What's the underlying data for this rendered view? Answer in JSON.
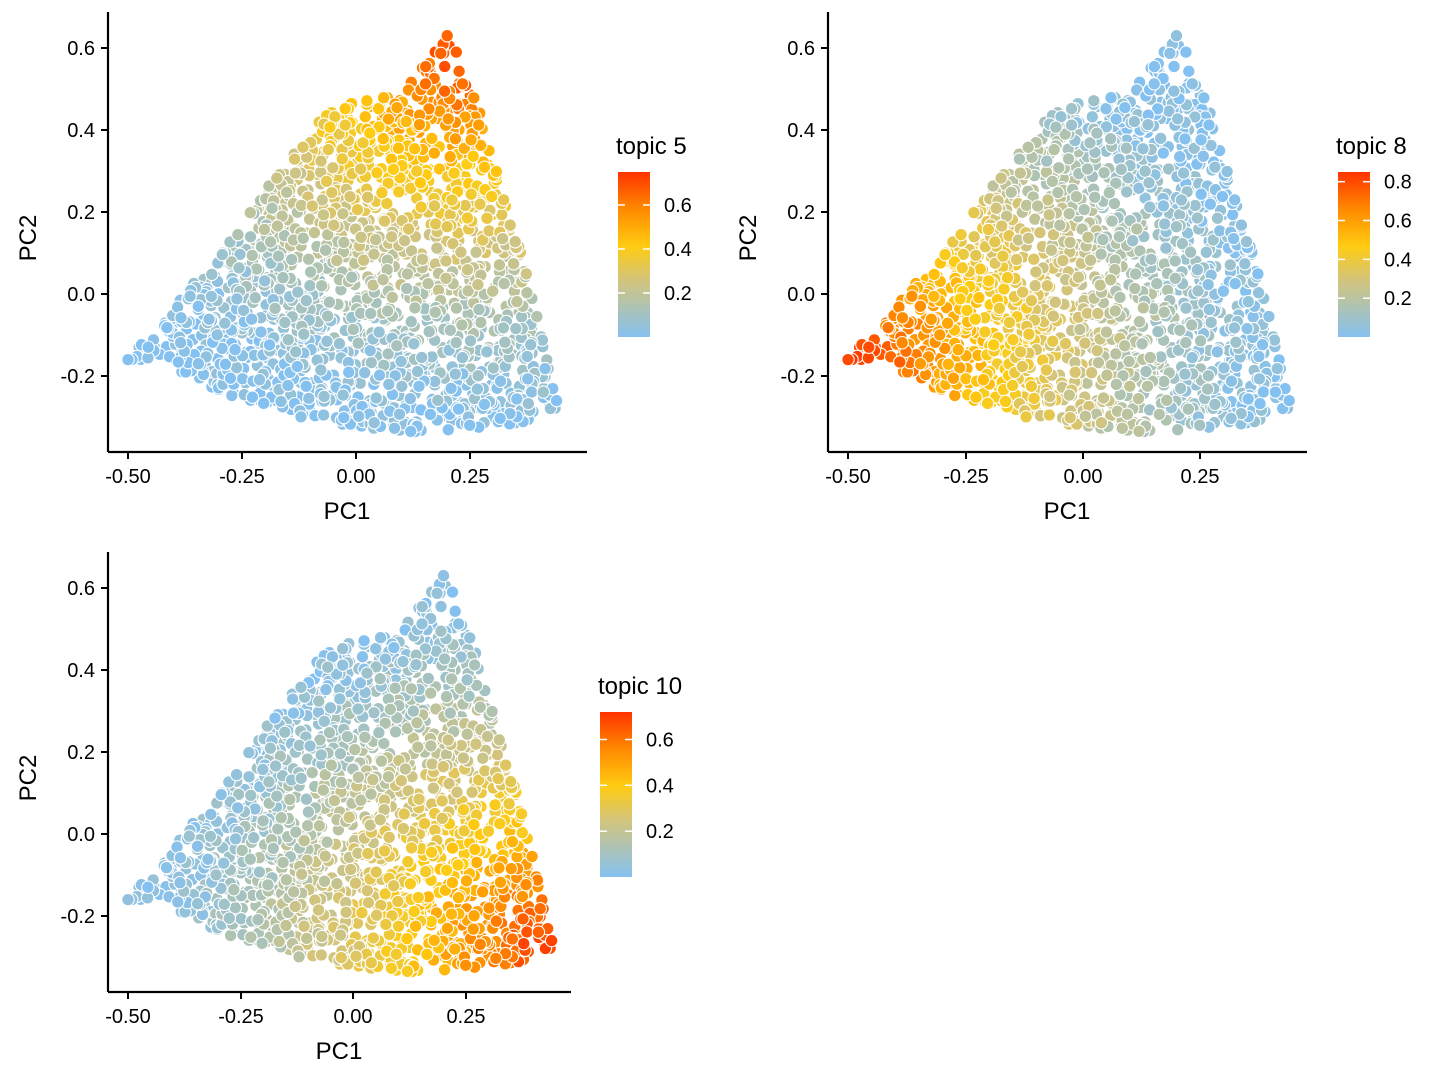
{
  "chart_data": [
    {
      "type": "scatter",
      "title": "",
      "xlabel": "PC1",
      "ylabel": "PC2",
      "xlim": [
        -0.53,
        0.47
      ],
      "ylim": [
        -0.38,
        0.68
      ],
      "x_ticks": [
        -0.5,
        -0.25,
        0.0,
        0.25
      ],
      "x_tick_labels": [
        "-0.50",
        "-0.25",
        "0.00",
        "0.25"
      ],
      "y_ticks": [
        -0.2,
        0.0,
        0.2,
        0.4,
        0.6
      ],
      "y_tick_labels": [
        "-0.2",
        "0.0",
        "0.2",
        "0.4",
        "0.6"
      ],
      "grid": false,
      "color_variable": "topic 5",
      "legend": {
        "title": "topic 5",
        "range": [
          0.0,
          0.75
        ],
        "ticks": [
          0.2,
          0.4,
          0.6
        ],
        "tick_labels": [
          "0.2",
          "0.4",
          "0.6"
        ]
      },
      "direction": [
        0.25,
        0.6
      ],
      "region": [
        [
          -0.5,
          -0.16
        ],
        [
          -0.42,
          -0.06
        ],
        [
          -0.3,
          0.1
        ],
        [
          -0.15,
          0.33
        ],
        [
          -0.05,
          0.46
        ],
        [
          0.1,
          0.49
        ],
        [
          0.2,
          0.63
        ],
        [
          0.27,
          0.45
        ],
        [
          0.33,
          0.22
        ],
        [
          0.4,
          -0.05
        ],
        [
          0.44,
          -0.28
        ],
        [
          0.35,
          -0.32
        ],
        [
          0.12,
          -0.34
        ],
        [
          -0.1,
          -0.31
        ],
        [
          -0.3,
          -0.24
        ],
        [
          -0.44,
          -0.16
        ]
      ]
    },
    {
      "type": "scatter",
      "title": "",
      "xlabel": "PC1",
      "ylabel": "PC2",
      "xlim": [
        -0.53,
        0.47
      ],
      "ylim": [
        -0.38,
        0.68
      ],
      "x_ticks": [
        -0.5,
        -0.25,
        0.0,
        0.25
      ],
      "x_tick_labels": [
        "-0.50",
        "-0.25",
        "0.00",
        "0.25"
      ],
      "y_ticks": [
        -0.2,
        0.0,
        0.2,
        0.4,
        0.6
      ],
      "y_tick_labels": [
        "-0.2",
        "0.0",
        "0.2",
        "0.4",
        "0.6"
      ],
      "grid": false,
      "color_variable": "topic 8",
      "legend": {
        "title": "topic 8",
        "range": [
          0.0,
          0.85
        ],
        "ticks": [
          0.2,
          0.4,
          0.6,
          0.8
        ],
        "tick_labels": [
          "0.2",
          "0.4",
          "0.6",
          "0.8"
        ]
      },
      "direction": [
        -0.5,
        -0.16
      ],
      "region": [
        [
          -0.5,
          -0.16
        ],
        [
          -0.42,
          -0.06
        ],
        [
          -0.3,
          0.1
        ],
        [
          -0.15,
          0.33
        ],
        [
          -0.05,
          0.46
        ],
        [
          0.1,
          0.49
        ],
        [
          0.2,
          0.63
        ],
        [
          0.27,
          0.45
        ],
        [
          0.33,
          0.22
        ],
        [
          0.4,
          -0.05
        ],
        [
          0.44,
          -0.28
        ],
        [
          0.35,
          -0.32
        ],
        [
          0.12,
          -0.34
        ],
        [
          -0.1,
          -0.31
        ],
        [
          -0.3,
          -0.24
        ],
        [
          -0.44,
          -0.16
        ]
      ]
    },
    {
      "type": "scatter",
      "title": "",
      "xlabel": "PC1",
      "ylabel": "PC2",
      "xlim": [
        -0.53,
        0.47
      ],
      "ylim": [
        -0.38,
        0.68
      ],
      "x_ticks": [
        -0.5,
        -0.25,
        0.0,
        0.25
      ],
      "x_tick_labels": [
        "-0.50",
        "-0.25",
        "0.00",
        "0.25"
      ],
      "y_ticks": [
        -0.2,
        0.0,
        0.2,
        0.4,
        0.6
      ],
      "y_tick_labels": [
        "-0.2",
        "0.0",
        "0.2",
        "0.4",
        "0.6"
      ],
      "grid": false,
      "color_variable": "topic 10",
      "legend": {
        "title": "topic 10",
        "range": [
          0.0,
          0.72
        ],
        "ticks": [
          0.2,
          0.4,
          0.6
        ],
        "tick_labels": [
          "0.2",
          "0.4",
          "0.6"
        ]
      },
      "direction": [
        0.44,
        -0.28
      ],
      "region": [
        [
          -0.5,
          -0.16
        ],
        [
          -0.42,
          -0.06
        ],
        [
          -0.3,
          0.1
        ],
        [
          -0.15,
          0.33
        ],
        [
          -0.05,
          0.46
        ],
        [
          0.1,
          0.49
        ],
        [
          0.2,
          0.63
        ],
        [
          0.27,
          0.45
        ],
        [
          0.33,
          0.22
        ],
        [
          0.4,
          -0.05
        ],
        [
          0.44,
          -0.28
        ],
        [
          0.35,
          -0.32
        ],
        [
          0.12,
          -0.34
        ],
        [
          -0.1,
          -0.31
        ],
        [
          -0.3,
          -0.24
        ],
        [
          -0.44,
          -0.16
        ]
      ]
    }
  ],
  "colors": {
    "low": "#85C1F0",
    "mid": "#FFCC11",
    "high": "#FF3300",
    "point_stroke": "#ffffff",
    "axis": "#000000"
  }
}
